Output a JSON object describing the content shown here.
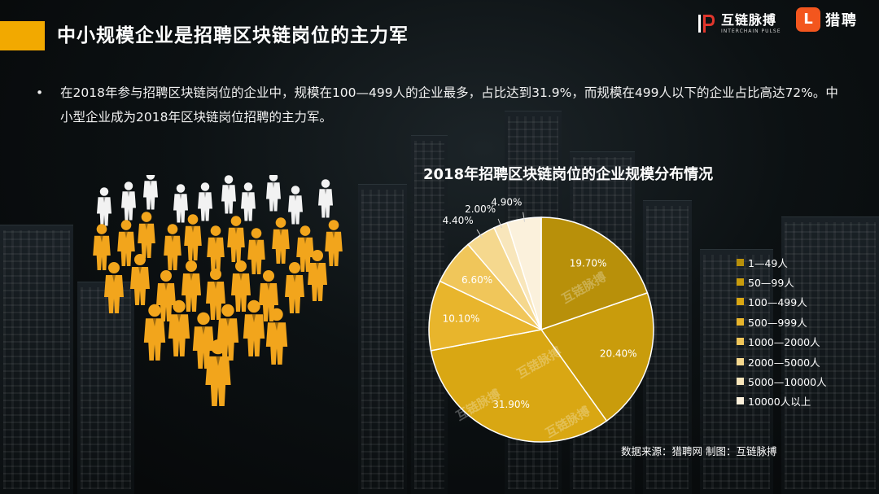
{
  "header": {
    "title": "中小规模企业是招聘区块链岗位的主力军",
    "logo_interchain_cn": "互链脉搏",
    "logo_interchain_en": "INTERCHAIN PULSE",
    "logo_liepin_cn": "猎聘",
    "logo_liepin_badge": "L"
  },
  "body": {
    "bullet_symbol": "•",
    "bullet_text": "在2018年参与招聘区块链岗位的企业中，规模在100—499人的企业最多，占比达到31.9%，而规模在499人以下的企业占比高达72%。中小型企业成为2018年区块链岗位招聘的主力军。"
  },
  "chart_data": {
    "type": "pie",
    "title": "2018年招聘区块链岗位的企业规模分布情况",
    "categories": [
      "1—49人",
      "50—99人",
      "100—499人",
      "500—999人",
      "1000—2000人",
      "2000—5000人",
      "5000—10000人",
      "10000人以上"
    ],
    "values": [
      19.7,
      20.4,
      31.9,
      10.1,
      6.6,
      4.4,
      2.0,
      4.9
    ],
    "labels": [
      "19.70%",
      "20.40%",
      "31.90%",
      "10.10%",
      "6.60%",
      "4.40%",
      "2.00%",
      "4.90%"
    ],
    "colors": [
      "#b8900a",
      "#c99c0c",
      "#d9a713",
      "#e8b52c",
      "#f0c65a",
      "#f5d88e",
      "#f8e6bb",
      "#fbf1dc"
    ],
    "legend_position": "right"
  },
  "watermark": "互链脉搏",
  "footer": {
    "source": "数据来源：猎聘网  制图：互链脉搏"
  }
}
